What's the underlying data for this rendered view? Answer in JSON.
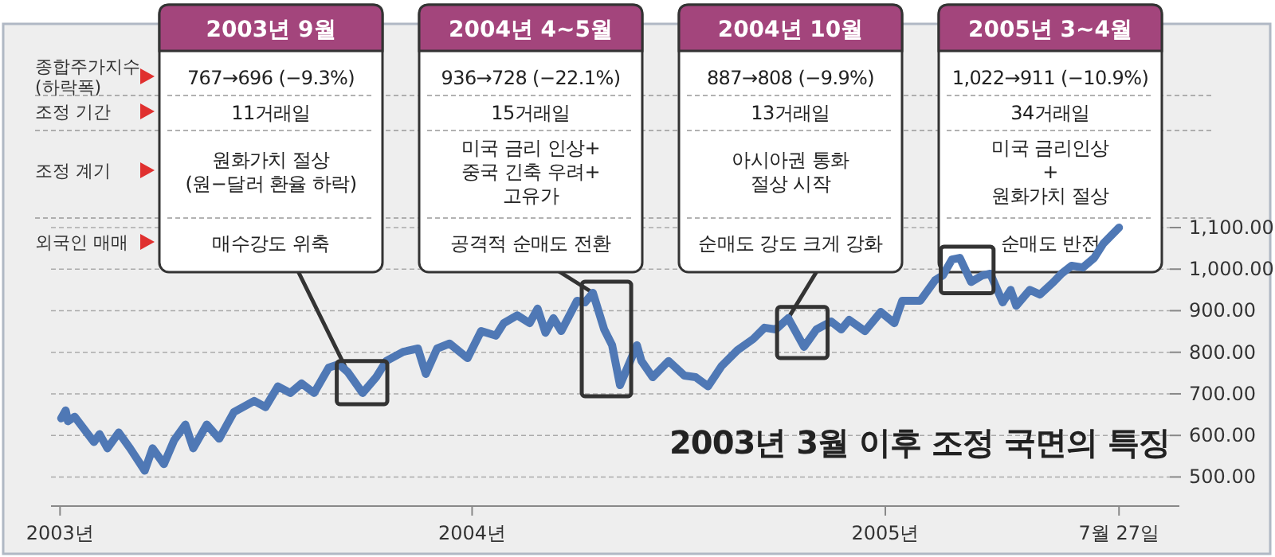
{
  "chart_data": {
    "type": "line",
    "title": "2003년 3월 이후 조정 국면의 특징",
    "x": [
      "2003-01-02",
      "2003-01-06",
      "2003-01-08",
      "2003-01-14",
      "2003-01-31",
      "2003-02-05",
      "2003-02-12",
      "2003-02-22",
      "2003-03-04",
      "2003-03-17",
      "2003-03-24",
      "2003-04-03",
      "2003-04-12",
      "2003-04-22",
      "2003-04-29",
      "2003-05-11",
      "2003-05-22",
      "2003-06-04",
      "2003-06-22",
      "2003-07-02",
      "2003-07-13",
      "2003-07-24",
      "2003-08-03",
      "2003-08-14",
      "2003-08-27",
      "2003-09-05",
      "2003-09-13",
      "2003-09-26",
      "2003-10-08",
      "2003-10-17",
      "2003-11-01",
      "2003-11-14",
      "2003-11-21",
      "2003-12-01",
      "2003-12-12",
      "2003-12-28",
      "2004-01-09",
      "2004-01-22",
      "2004-01-29",
      "2004-02-10",
      "2004-02-21",
      "2004-02-28",
      "2004-03-06",
      "2004-03-13",
      "2004-03-20",
      "2004-04-03",
      "2004-04-10",
      "2004-04-17",
      "2004-04-27",
      "2004-05-04",
      "2004-05-11",
      "2004-05-26",
      "2004-05-30",
      "2004-06-09",
      "2004-06-23",
      "2004-07-07",
      "2004-07-17",
      "2004-07-28",
      "2004-08-09",
      "2004-08-23",
      "2004-09-06",
      "2004-09-16",
      "2004-09-26",
      "2004-10-07",
      "2004-10-21",
      "2004-11-01",
      "2004-11-14",
      "2004-11-23",
      "2004-11-30",
      "2004-12-14",
      "2004-12-28",
      "2005-01-09",
      "2005-01-16",
      "2005-02-01",
      "2005-02-14",
      "2005-02-21",
      "2005-03-01",
      "2005-03-08",
      "2005-03-18",
      "2005-03-28",
      "2005-04-04",
      "2005-04-15",
      "2005-04-22",
      "2005-04-27",
      "2005-05-09",
      "2005-05-18",
      "2005-05-30",
      "2005-06-06",
      "2005-06-15",
      "2005-06-25",
      "2005-07-05",
      "2005-07-13",
      "2005-07-27"
    ],
    "series": [
      {
        "color": "#4f78b5",
        "values": [
          641,
          660,
          634,
          645,
          584,
          603,
          569,
          607,
          569,
          515,
          569,
          531,
          588,
          626,
          569,
          626,
          592,
          656,
          683,
          668,
          718,
          702,
          725,
          702,
          763,
          771,
          752,
          702,
          740,
          779,
          801,
          809,
          748,
          809,
          821,
          786,
          851,
          840,
          870,
          889,
          870,
          905,
          847,
          882,
          851,
          924,
          920,
          943,
          855,
          817,
          721,
          817,
          779,
          740,
          779,
          744,
          740,
          718,
          767,
          805,
          832,
          859,
          855,
          882,
          813,
          855,
          874,
          855,
          878,
          851,
          897,
          870,
          924,
          924,
          973,
          985,
          1023,
          1027,
          969,
          985,
          989,
          920,
          950,
          912,
          950,
          939,
          969,
          989,
          1008,
          1004,
          1027,
          1061,
          1100
        ]
      }
    ],
    "xlim": [
      "2002-12-24",
      "2005-09-10"
    ],
    "xticks": [
      {
        "value": "2003-01-01",
        "label": "2003년"
      },
      {
        "value": "2004-01-01",
        "label": "2004년"
      },
      {
        "value": "2005-01-01",
        "label": "2005년"
      },
      {
        "value": "2005-07-27",
        "label": "7월 27일"
      }
    ],
    "ylim": [
      430,
      1590
    ],
    "yticks": [
      {
        "value": 500,
        "label": "500.00"
      },
      {
        "value": 600,
        "label": "600.00"
      },
      {
        "value": 700,
        "label": "700.00"
      },
      {
        "value": 800,
        "label": "800.00"
      },
      {
        "value": 900,
        "label": "900.00"
      },
      {
        "value": 1000,
        "label": "1,000.00"
      },
      {
        "value": 1100,
        "label": "1,100.00"
      }
    ],
    "grid": "y",
    "marker": "none",
    "line_style": "solid",
    "annotations": [
      "종합주가지수\n(하락폭)",
      "조정 기간",
      "조정 계기",
      "외국인 매매",
      "2003년 9월",
      "767→696 (−9.3%)",
      "11거래일",
      "원화가치 절상\n(원−달러 환율 하락)",
      {
        "text": "매수강도 위축",
        "x": "2003-09-13",
        "y": 752
      },
      "2004년 4~5월",
      "936→728 (−22.1%)",
      "15거래일",
      "미국 금리 인상+\n중국 긴축 우려+\n고유가",
      {
        "text": "공격적 순매도 전환",
        "x": "2004-04-17",
        "y": 943
      },
      "2004년 10월",
      "887→808 (−9.9%)",
      "13거래일",
      "아시아권 통화\n절상 시작",
      {
        "text": "순매도 강도 크게 강화",
        "x": "2004-10-07",
        "y": 882
      },
      "2005년 3~4월",
      "1,022→911 (−10.9%)",
      "34거래일",
      "미국 금리인상\n+\n원화가치 절상",
      {
        "text": "순매도 반전",
        "x": "2005-03-01",
        "y": 1027
      }
    ]
  }
}
